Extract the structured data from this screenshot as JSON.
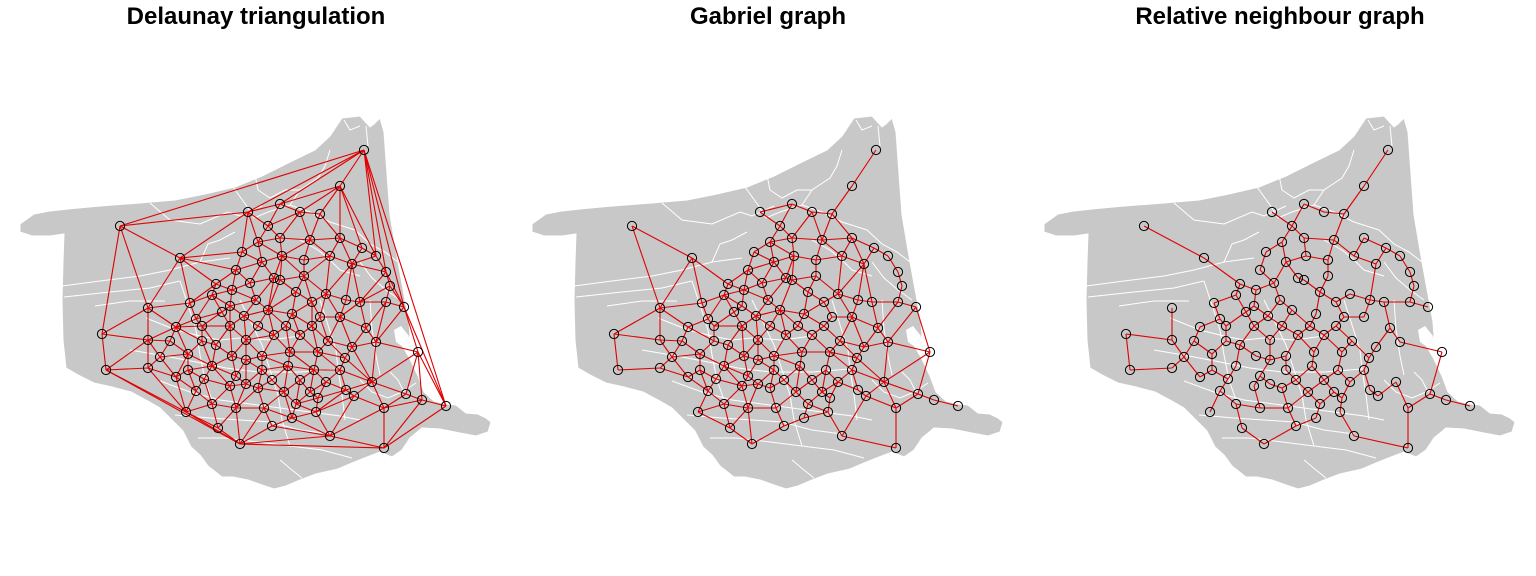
{
  "figure": {
    "panels": [
      {
        "id": "delaunay",
        "title": "Delaunay triangulation",
        "graph": "delaunay"
      },
      {
        "id": "gabriel",
        "title": "Gabriel graph",
        "graph": "gabriel"
      },
      {
        "id": "rng",
        "title": "Relative neighbour graph",
        "graph": "rng"
      }
    ],
    "colors": {
      "region_fill": "#c8c8c8",
      "region_border": "#ffffff",
      "edge": "#e00000",
      "point_stroke": "#000000"
    }
  }
}
